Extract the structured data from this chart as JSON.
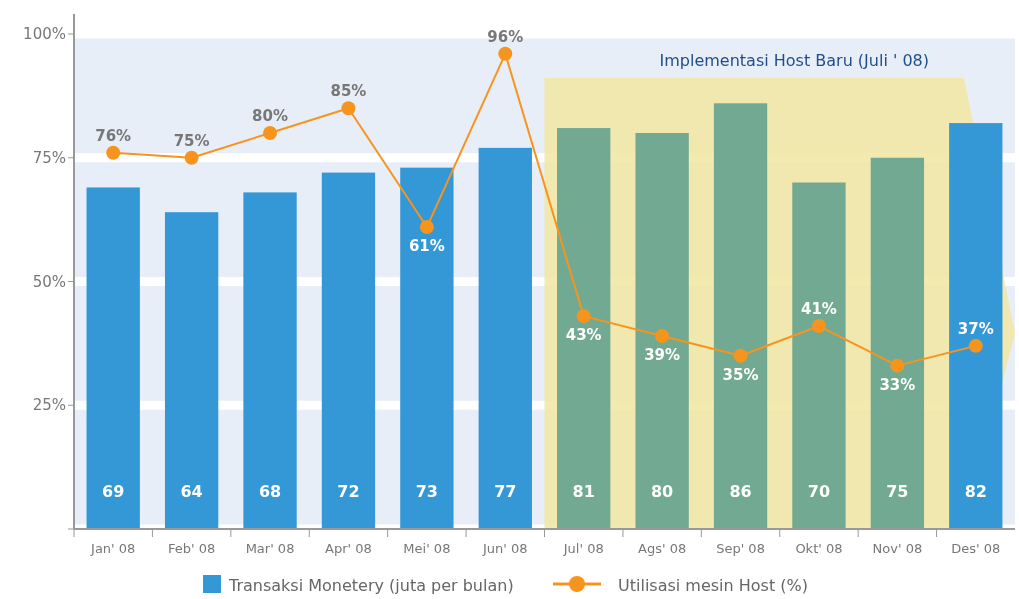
{
  "chart_data": {
    "type": "bar",
    "categories": [
      "Jan' 08",
      "Feb' 08",
      "Mar' 08",
      "Apr' 08",
      "Mei' 08",
      "Jun' 08",
      "Jul' 08",
      "Ags' 08",
      "Sep' 08",
      "Okt' 08",
      "Nov' 08",
      "Des' 08"
    ],
    "series": [
      {
        "name": "Transaksi Monetery (juta per bulan)",
        "color": "#3497d6",
        "colors": [
          "#3497d6",
          "#3497d6",
          "#3497d6",
          "#3497d6",
          "#3497d6",
          "#3497d6",
          "#72a992",
          "#72a992",
          "#72a992",
          "#72a992",
          "#72a992",
          "#3497d6"
        ],
        "values": [
          69,
          64,
          68,
          72,
          73,
          77,
          81,
          80,
          86,
          70,
          75,
          82
        ]
      },
      {
        "name": "Utilisasi mesin Host (%)",
        "type": "line",
        "color": "#f7941d",
        "marker": "circle",
        "values": [
          76,
          75,
          80,
          85,
          61,
          96,
          43,
          39,
          35,
          41,
          33,
          37
        ],
        "value_labels": [
          "76%",
          "75%",
          "80%",
          "85%",
          "61%",
          "96%",
          "43%",
          "39%",
          "35%",
          "41%",
          "33%",
          "37%"
        ]
      }
    ],
    "data_labels": true,
    "ylim": [
      0,
      100
    ],
    "yticks": [
      {
        "value": 0,
        "label": null
      },
      {
        "value": 25,
        "label": "25%"
      },
      {
        "value": 50,
        "label": "50%"
      },
      {
        "value": 75,
        "label": "75%"
      },
      {
        "value": 100,
        "label": "100%"
      }
    ],
    "grid": "y",
    "legend": "bottom",
    "bands": [
      {
        "axis": "x",
        "from": "Jul' 08",
        "to": "Des' 08",
        "label": "Implementasi Host Baru (Juli ' 08)",
        "color": "#f1e6a2"
      }
    ]
  }
}
